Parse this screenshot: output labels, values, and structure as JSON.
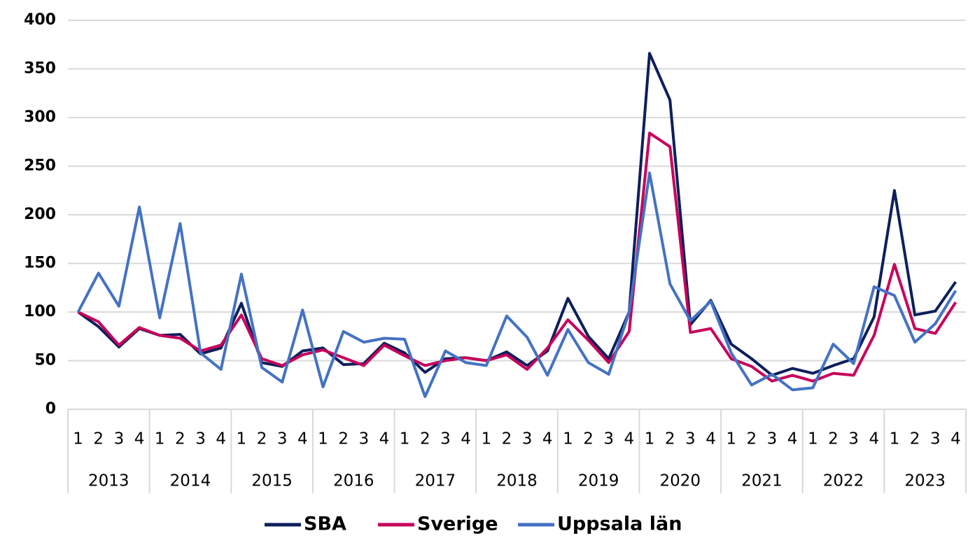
{
  "chart_data": {
    "type": "line",
    "categories": [
      "1",
      "2",
      "3",
      "4",
      "1",
      "2",
      "3",
      "4",
      "1",
      "2",
      "3",
      "4",
      "1",
      "2",
      "3",
      "4",
      "1",
      "2",
      "3",
      "4",
      "1",
      "2",
      "3",
      "4",
      "1",
      "2",
      "3",
      "4",
      "1",
      "2",
      "3",
      "4",
      "1",
      "2",
      "3",
      "4",
      "1",
      "2",
      "3",
      "4",
      "1",
      "2",
      "3",
      "4"
    ],
    "groups": [
      "2013",
      "2014",
      "2015",
      "2016",
      "2017",
      "2018",
      "2019",
      "2020",
      "2021",
      "2022",
      "2023"
    ],
    "series": [
      {
        "name": "SBA",
        "color": "#0d1f5c",
        "values": [
          100,
          85,
          64,
          83,
          76,
          77,
          57,
          63,
          109,
          48,
          44,
          60,
          63,
          46,
          47,
          68,
          58,
          38,
          52,
          53,
          50,
          59,
          45,
          60,
          114,
          75,
          52,
          100,
          366,
          318,
          87,
          112,
          67,
          52,
          35,
          42,
          37,
          45,
          52,
          95,
          225,
          97,
          101,
          131
        ]
      },
      {
        "name": "Sverige",
        "color": "#c8005a",
        "values": [
          100,
          90,
          66,
          84,
          76,
          73,
          60,
          66,
          97,
          52,
          45,
          56,
          61,
          53,
          45,
          66,
          55,
          45,
          50,
          53,
          50,
          56,
          41,
          63,
          92,
          71,
          48,
          80,
          284,
          270,
          79,
          83,
          52,
          44,
          29,
          35,
          29,
          37,
          35,
          76,
          149,
          83,
          78,
          110
        ]
      },
      {
        "name": "Uppsala län",
        "color": "#4472c4",
        "values": [
          100,
          140,
          106,
          208,
          94,
          191,
          58,
          41,
          139,
          43,
          28,
          102,
          23,
          80,
          69,
          73,
          72,
          13,
          60,
          48,
          45,
          96,
          74,
          35,
          82,
          48,
          36,
          100,
          243,
          129,
          91,
          111,
          58,
          25,
          36,
          20,
          22,
          67,
          47,
          126,
          117,
          69,
          88,
          122
        ]
      }
    ],
    "ylim": [
      0,
      400
    ],
    "yticks": [
      0,
      50,
      100,
      150,
      200,
      250,
      300,
      350,
      400
    ],
    "grid": true,
    "legend": "bottom"
  }
}
